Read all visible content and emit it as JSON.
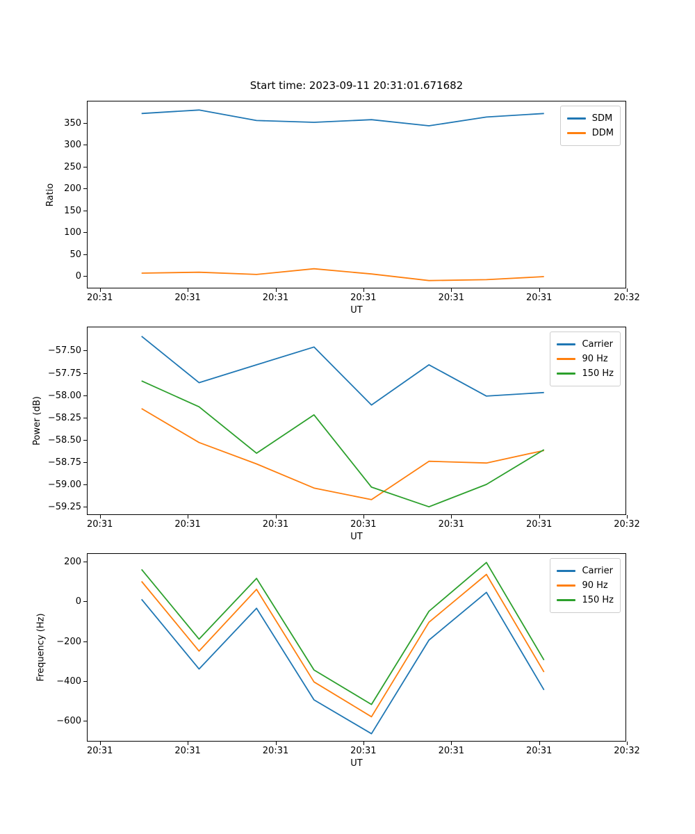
{
  "figure": {
    "title": "Start time: 2023-09-11 20:31:01.671682",
    "background": "#ffffff"
  },
  "chart_data": [
    {
      "type": "line",
      "title": "Start time: 2023-09-11 20:31:01.671682",
      "xlabel": "UT",
      "ylabel": "Ratio",
      "grid": false,
      "legend_position": "upper right",
      "xticklabels": [
        "20:31",
        "20:31",
        "20:31",
        "20:31",
        "20:31",
        "20:31",
        "20:32"
      ],
      "yticks": [
        {
          "v": 0,
          "label": "0"
        },
        {
          "v": 50,
          "label": "50"
        },
        {
          "v": 100,
          "label": "100"
        },
        {
          "v": 150,
          "label": "150"
        },
        {
          "v": 200,
          "label": "200"
        },
        {
          "v": 250,
          "label": "250"
        },
        {
          "v": 300,
          "label": "300"
        },
        {
          "v": 350,
          "label": "350"
        }
      ],
      "ylim": [
        -29.5,
        398.5
      ],
      "series": [
        {
          "name": "SDM",
          "color": "#1f77b4",
          "values": [
            371,
            379,
            355,
            351,
            357,
            343,
            363,
            371
          ]
        },
        {
          "name": "DDM",
          "color": "#ff7f0e",
          "values": [
            7,
            9,
            4,
            17,
            5,
            -10,
            -8,
            -1
          ]
        }
      ]
    },
    {
      "type": "line",
      "title": "",
      "xlabel": "UT",
      "ylabel": "Power (dB)",
      "grid": false,
      "legend_position": "upper right",
      "xticklabels": [
        "20:31",
        "20:31",
        "20:31",
        "20:31",
        "20:31",
        "20:31",
        "20:32"
      ],
      "yticks": [
        {
          "v": -59.25,
          "label": "−59.25"
        },
        {
          "v": -59.0,
          "label": "−59.00"
        },
        {
          "v": -58.75,
          "label": "−58.75"
        },
        {
          "v": -58.5,
          "label": "−58.50"
        },
        {
          "v": -58.25,
          "label": "−58.25"
        },
        {
          "v": -58.0,
          "label": "−58.00"
        },
        {
          "v": -57.75,
          "label": "−57.75"
        },
        {
          "v": -57.5,
          "label": "−57.50"
        }
      ],
      "ylim": [
        -59.35,
        -57.24
      ],
      "series": [
        {
          "name": "Carrier",
          "color": "#1f77b4",
          "values": [
            -57.34,
            -57.86,
            -57.66,
            -57.46,
            -58.11,
            -57.66,
            -58.01,
            -57.97
          ]
        },
        {
          "name": "90 Hz",
          "color": "#ff7f0e",
          "values": [
            -58.15,
            -58.53,
            -58.77,
            -59.04,
            -59.17,
            -58.74,
            -58.76,
            -58.62
          ]
        },
        {
          "name": "150 Hz",
          "color": "#2ca02c",
          "values": [
            -57.84,
            -58.13,
            -58.65,
            -58.22,
            -59.03,
            -59.25,
            -59.0,
            -58.61
          ]
        }
      ]
    },
    {
      "type": "line",
      "title": "",
      "xlabel": "UT",
      "ylabel": "Frequency (Hz)",
      "grid": false,
      "legend_position": "upper right",
      "xticklabels": [
        "20:31",
        "20:31",
        "20:31",
        "20:31",
        "20:31",
        "20:31",
        "20:32"
      ],
      "yticks": [
        {
          "v": -600,
          "label": "−600"
        },
        {
          "v": -400,
          "label": "−400"
        },
        {
          "v": -200,
          "label": "−200"
        },
        {
          "v": 0,
          "label": "0"
        },
        {
          "v": 200,
          "label": "200"
        }
      ],
      "ylim": [
        -708,
        238
      ],
      "series": [
        {
          "name": "Carrier",
          "color": "#1f77b4",
          "values": [
            10,
            -340,
            -35,
            -495,
            -665,
            -195,
            45,
            -445
          ]
        },
        {
          "name": "90 Hz",
          "color": "#ff7f0e",
          "values": [
            100,
            -250,
            60,
            -405,
            -580,
            -105,
            135,
            -355
          ]
        },
        {
          "name": "150 Hz",
          "color": "#2ca02c",
          "values": [
            160,
            -190,
            115,
            -345,
            -518,
            -50,
            195,
            -295
          ]
        }
      ]
    }
  ]
}
